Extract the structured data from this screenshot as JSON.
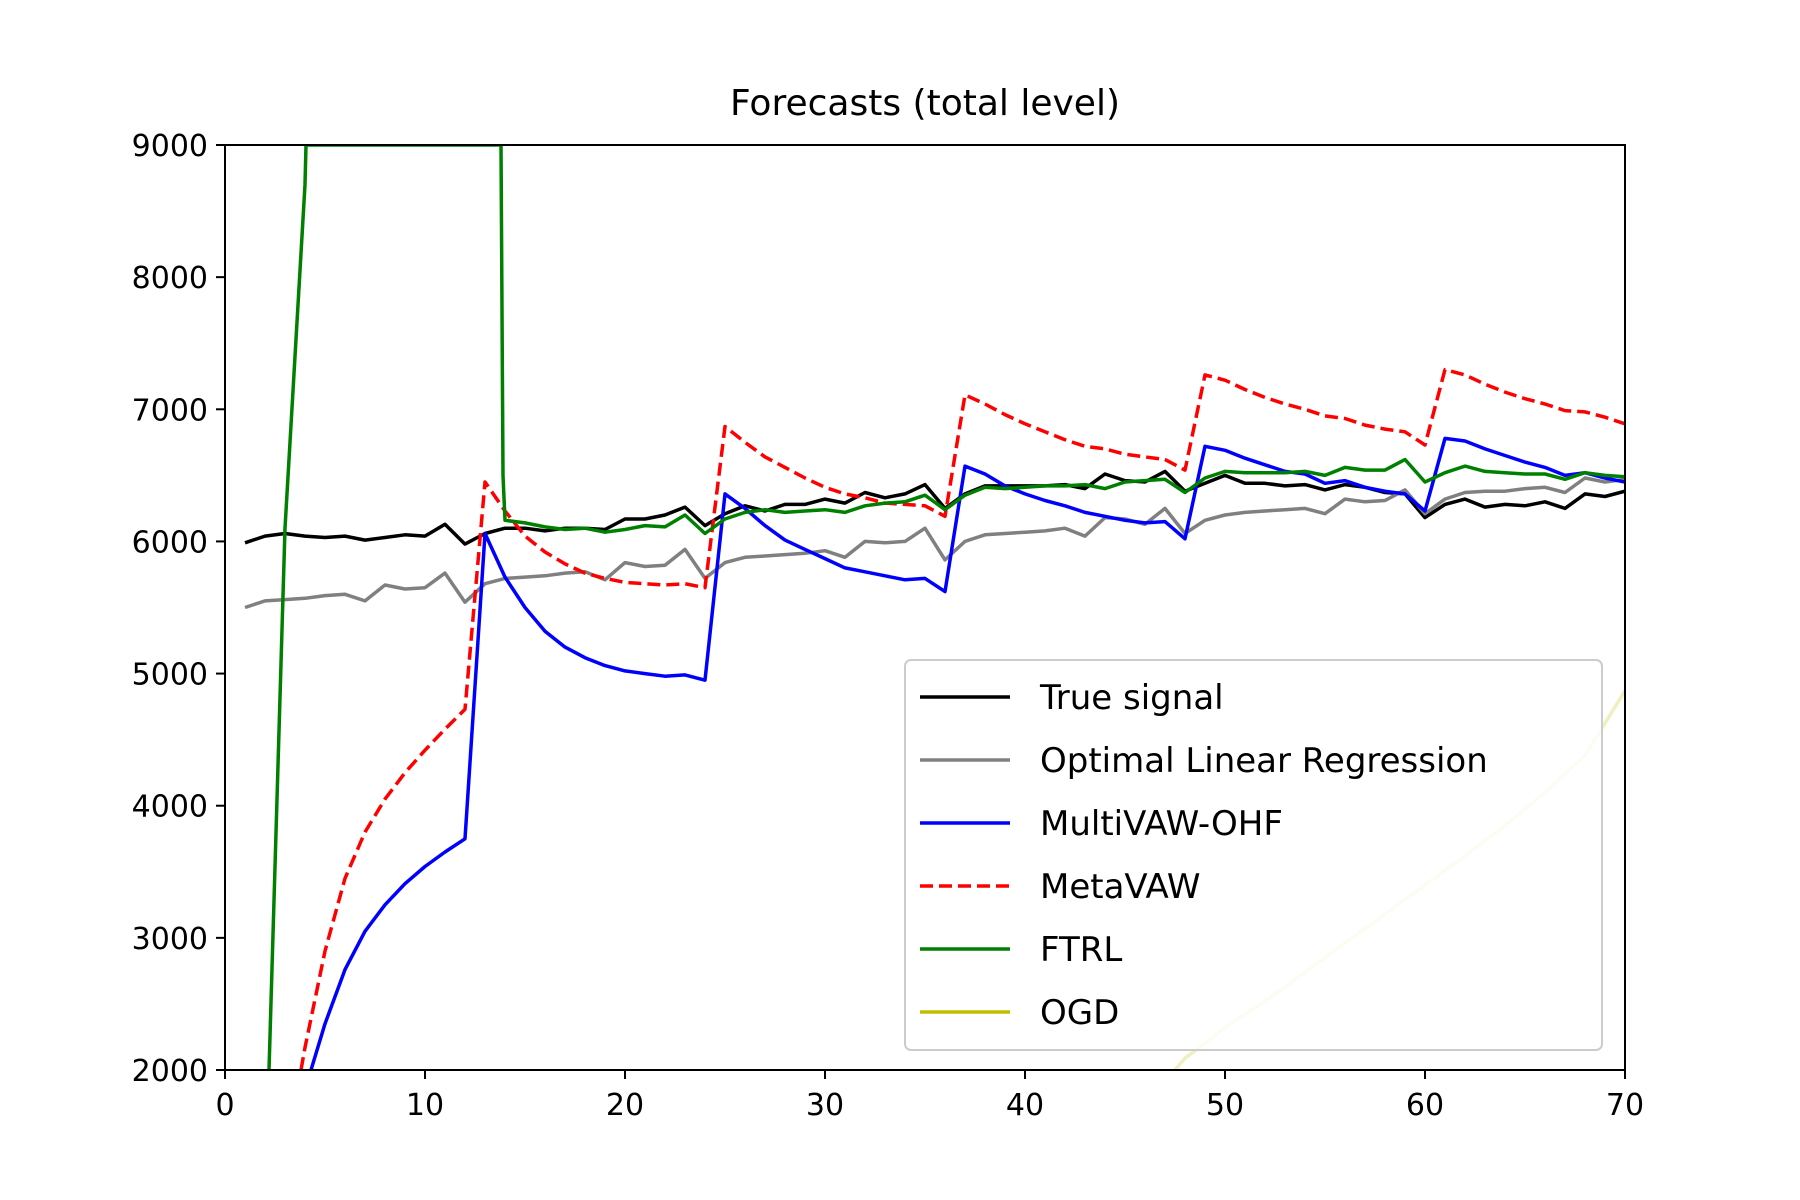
{
  "chart_data": {
    "type": "line",
    "title": "Forecasts (total level)",
    "xlabel": "",
    "ylabel": "",
    "xlim": [
      0,
      70
    ],
    "ylim": [
      2000,
      9000
    ],
    "xticks": [
      "0",
      "10",
      "20",
      "30",
      "40",
      "50",
      "60",
      "70"
    ],
    "yticks": [
      "2000",
      "3000",
      "4000",
      "5000",
      "6000",
      "7000",
      "8000",
      "9000"
    ],
    "grid": false,
    "legend_position": "lower-right",
    "series": [
      {
        "name": "True signal",
        "color": "#000000",
        "dash": "solid",
        "x": [
          1,
          2,
          3,
          4,
          5,
          6,
          7,
          8,
          9,
          10,
          11,
          12,
          13,
          14,
          15,
          16,
          17,
          18,
          19,
          20,
          21,
          22,
          23,
          24,
          25,
          26,
          27,
          28,
          29,
          30,
          31,
          32,
          33,
          34,
          35,
          36,
          37,
          38,
          39,
          40,
          41,
          42,
          43,
          44,
          45,
          46,
          47,
          48,
          49,
          50,
          51,
          52,
          53,
          54,
          55,
          56,
          57,
          58,
          59,
          60,
          61,
          62,
          63,
          64,
          65,
          66,
          67,
          68,
          69,
          70
        ],
        "values": [
          5990,
          6040,
          6060,
          6040,
          6030,
          6040,
          6010,
          6030,
          6050,
          6040,
          6130,
          5980,
          6060,
          6100,
          6100,
          6080,
          6100,
          6100,
          6090,
          6170,
          6170,
          6200,
          6260,
          6120,
          6210,
          6270,
          6230,
          6280,
          6280,
          6320,
          6290,
          6370,
          6330,
          6360,
          6430,
          6250,
          6360,
          6420,
          6420,
          6420,
          6420,
          6430,
          6400,
          6510,
          6460,
          6450,
          6530,
          6380,
          6440,
          6500,
          6440,
          6440,
          6420,
          6430,
          6390,
          6430,
          6410,
          6370,
          6360,
          6180,
          6280,
          6320,
          6260,
          6280,
          6270,
          6300,
          6250,
          6360,
          6340,
          6380
        ]
      },
      {
        "name": "Optimal Linear Regression",
        "color": "#808080",
        "dash": "solid",
        "x": [
          1,
          2,
          3,
          4,
          5,
          6,
          7,
          8,
          9,
          10,
          11,
          12,
          13,
          14,
          15,
          16,
          17,
          18,
          19,
          20,
          21,
          22,
          23,
          24,
          25,
          26,
          27,
          28,
          29,
          30,
          31,
          32,
          33,
          34,
          35,
          36,
          37,
          38,
          39,
          40,
          41,
          42,
          43,
          44,
          45,
          46,
          47,
          48,
          49,
          50,
          51,
          52,
          53,
          54,
          55,
          56,
          57,
          58,
          59,
          60,
          61,
          62,
          63,
          64,
          65,
          66,
          67,
          68,
          69,
          70
        ],
        "values": [
          5500,
          5550,
          5560,
          5570,
          5590,
          5600,
          5550,
          5670,
          5640,
          5650,
          5760,
          5540,
          5680,
          5720,
          5730,
          5740,
          5760,
          5770,
          5710,
          5840,
          5810,
          5820,
          5940,
          5720,
          5840,
          5880,
          5890,
          5900,
          5910,
          5930,
          5880,
          6000,
          5990,
          6000,
          6100,
          5860,
          6000,
          6050,
          6060,
          6070,
          6080,
          6100,
          6040,
          6180,
          6170,
          6130,
          6250,
          6060,
          6160,
          6200,
          6220,
          6230,
          6240,
          6250,
          6210,
          6320,
          6300,
          6310,
          6390,
          6210,
          6320,
          6370,
          6380,
          6380,
          6400,
          6410,
          6370,
          6480,
          6450,
          6470
        ]
      },
      {
        "name": "MultiVAW-OHF",
        "color": "#0000ff",
        "dash": "solid",
        "x": [
          4.3,
          5,
          6,
          7,
          8,
          9,
          10,
          11,
          12,
          13,
          14,
          15,
          16,
          17,
          18,
          19,
          20,
          21,
          22,
          23,
          24,
          25,
          26,
          27,
          28,
          29,
          30,
          31,
          32,
          33,
          34,
          35,
          36,
          37,
          38,
          39,
          40,
          41,
          42,
          43,
          44,
          45,
          46,
          47,
          48,
          49,
          50,
          51,
          52,
          53,
          54,
          55,
          56,
          57,
          58,
          59,
          60,
          61,
          62,
          63,
          64,
          65,
          66,
          67,
          68,
          69,
          70
        ],
        "values": [
          2000,
          2350,
          2760,
          3050,
          3250,
          3410,
          3540,
          3650,
          3750,
          6060,
          5730,
          5500,
          5320,
          5200,
          5120,
          5060,
          5020,
          5000,
          4980,
          4990,
          4950,
          6360,
          6250,
          6120,
          6010,
          5940,
          5870,
          5800,
          5770,
          5740,
          5710,
          5720,
          5620,
          6570,
          6510,
          6420,
          6360,
          6310,
          6270,
          6220,
          6190,
          6160,
          6140,
          6150,
          6020,
          6720,
          6690,
          6630,
          6580,
          6530,
          6510,
          6440,
          6460,
          6410,
          6380,
          6360,
          6230,
          6780,
          6760,
          6700,
          6650,
          6600,
          6560,
          6500,
          6520,
          6480,
          6450
        ]
      },
      {
        "name": "MetaVAW",
        "color": "#ff0000",
        "dash": "dashed",
        "x": [
          3.8,
          4,
          5,
          6,
          7,
          8,
          9,
          10,
          11,
          12,
          13,
          14,
          15,
          16,
          17,
          18,
          19,
          20,
          21,
          22,
          23,
          24,
          25,
          26,
          27,
          28,
          29,
          30,
          31,
          32,
          33,
          34,
          35,
          36,
          37,
          38,
          39,
          40,
          41,
          42,
          43,
          44,
          45,
          46,
          47,
          48,
          49,
          50,
          51,
          52,
          53,
          54,
          55,
          56,
          57,
          58,
          59,
          60,
          61,
          62,
          63,
          64,
          65,
          66,
          67,
          68,
          69,
          70
        ],
        "values": [
          2000,
          2170,
          2900,
          3450,
          3800,
          4050,
          4250,
          4420,
          4580,
          4730,
          6450,
          6230,
          6040,
          5920,
          5830,
          5760,
          5720,
          5690,
          5680,
          5670,
          5680,
          5650,
          6870,
          6750,
          6640,
          6560,
          6480,
          6410,
          6360,
          6330,
          6290,
          6280,
          6270,
          6190,
          7110,
          7040,
          6960,
          6890,
          6830,
          6770,
          6720,
          6700,
          6660,
          6640,
          6620,
          6540,
          7260,
          7220,
          7150,
          7090,
          7040,
          7000,
          6950,
          6930,
          6880,
          6850,
          6830,
          6730,
          7300,
          7260,
          7190,
          7130,
          7080,
          7040,
          6990,
          6980,
          6940,
          6890
        ]
      },
      {
        "name": "FTRL",
        "color": "#008000",
        "dash": "solid",
        "x": [
          2.2,
          3,
          4,
          4.05,
          13.8,
          13.9,
          14,
          15,
          16,
          17,
          18,
          19,
          20,
          21,
          22,
          23,
          24,
          25,
          26,
          27,
          28,
          29,
          30,
          31,
          32,
          33,
          34,
          35,
          36,
          37,
          38,
          39,
          40,
          41,
          42,
          43,
          44,
          45,
          46,
          47,
          48,
          49,
          50,
          51,
          52,
          53,
          54,
          55,
          56,
          57,
          58,
          59,
          60,
          61,
          62,
          63,
          64,
          65,
          66,
          67,
          68,
          69,
          70
        ],
        "values": [
          2000,
          6100,
          8700,
          9000,
          9000,
          6500,
          6160,
          6140,
          6110,
          6090,
          6100,
          6070,
          6090,
          6120,
          6110,
          6200,
          6060,
          6170,
          6220,
          6240,
          6220,
          6230,
          6240,
          6220,
          6270,
          6290,
          6300,
          6350,
          6240,
          6350,
          6410,
          6400,
          6410,
          6420,
          6420,
          6430,
          6400,
          6450,
          6460,
          6470,
          6370,
          6480,
          6530,
          6520,
          6520,
          6520,
          6530,
          6500,
          6560,
          6540,
          6540,
          6620,
          6450,
          6520,
          6570,
          6530,
          6520,
          6510,
          6510,
          6470,
          6520,
          6500,
          6490
        ]
      },
      {
        "name": "OGD",
        "color": "#bfbf00",
        "dash": "solid",
        "x": [
          47.5,
          48,
          49,
          50,
          52,
          54,
          56,
          58,
          60,
          62,
          64,
          66,
          68,
          70
        ],
        "values": [
          2000,
          2090,
          2200,
          2320,
          2520,
          2740,
          2960,
          3180,
          3400,
          3620,
          3850,
          4100,
          4380,
          4870
        ]
      }
    ]
  }
}
